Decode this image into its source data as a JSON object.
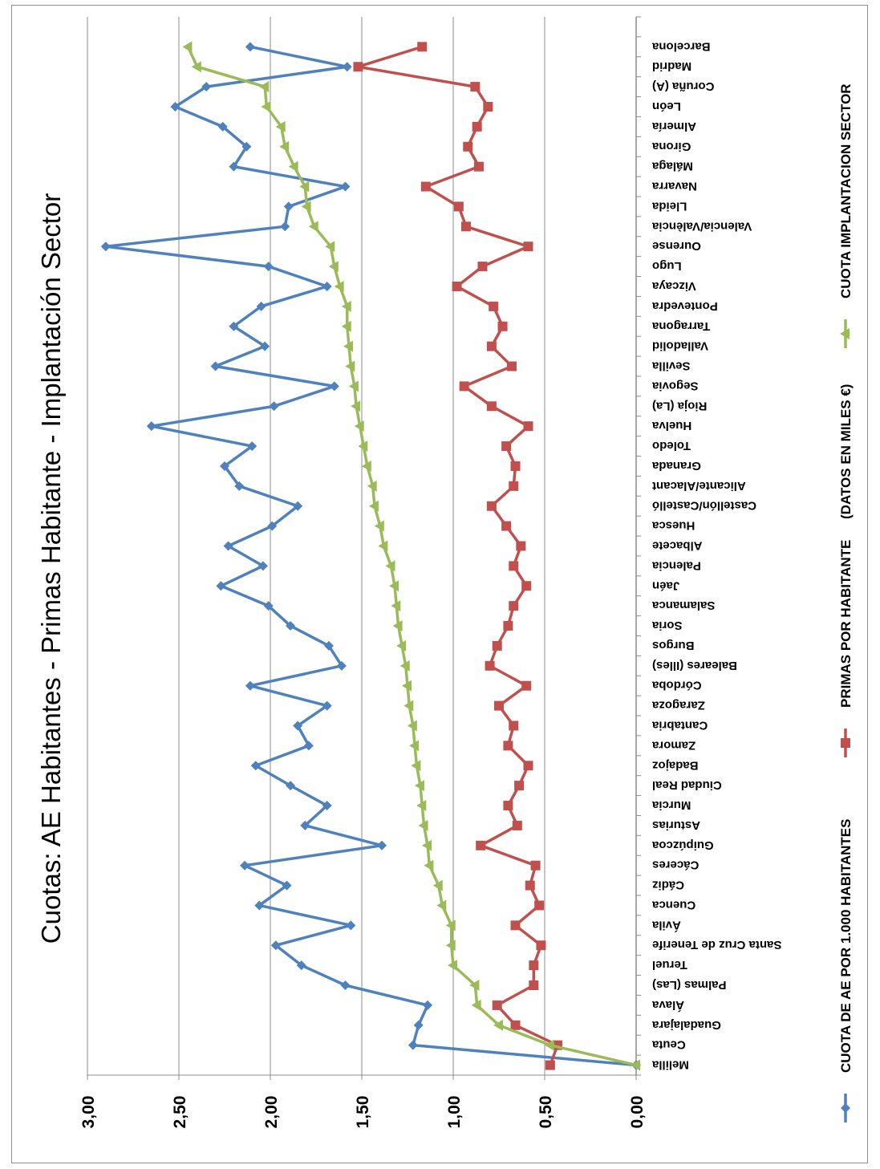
{
  "chart_data": {
    "type": "line",
    "title": "Cuotas: AE Habitantes - Primas Habitante - Implantación Sector",
    "ylim": [
      0,
      3
    ],
    "ytick_labels": [
      "0,00",
      "0,50",
      "1,00",
      "1,50",
      "2,00",
      "2,50",
      "3,00"
    ],
    "ytick_values": [
      0,
      0.5,
      1,
      1.5,
      2,
      2.5,
      3
    ],
    "grid": "horizontal",
    "legend_position": "bottom",
    "legend_note": "(DATOS EN MILES €)",
    "categories": [
      "Melilla",
      "Ceuta",
      "Guadalajara",
      "Álava",
      "Palmas (Las)",
      "Teruel",
      "Santa Cruz de Tenerife",
      "Ávila",
      "Cuenca",
      "Cádiz",
      "Cáceres",
      "Guipúzcoa",
      "Asturias",
      "Murcia",
      "Ciudad Real",
      "Badajoz",
      "Zamora",
      "Cantabria",
      "Zaragoza",
      "Córdoba",
      "Baleares (Illes)",
      "Burgos",
      "Soria",
      "Salamanca",
      "Jaén",
      "Palencia",
      "Albacete",
      "Huesca",
      "Castellón/Castelló",
      "Alicante/Alacant",
      "Granada",
      "Toledo",
      "Huelva",
      "Rioja (La)",
      "Segovia",
      "Sevilla",
      "Valladolid",
      "Tarragona",
      "Pontevedra",
      "Vizcaya",
      "Lugo",
      "Ourense",
      "Valencia/València",
      "Lleida",
      "Navarra",
      "Málaga",
      "Girona",
      "Almería",
      "León",
      "Coruña (A)",
      "Madrid",
      "Barcelona"
    ],
    "series": [
      {
        "name": "CUOTA DE AE POR 1.000 HABITANTES",
        "color": "#4f81bd",
        "marker": "diamond",
        "values": [
          0.0,
          1.22,
          1.19,
          1.14,
          1.59,
          1.83,
          1.97,
          1.56,
          2.06,
          1.91,
          2.14,
          1.39,
          1.81,
          1.69,
          1.89,
          2.08,
          1.79,
          1.85,
          1.69,
          2.11,
          1.61,
          1.68,
          1.89,
          2.01,
          2.27,
          2.04,
          2.23,
          1.99,
          1.85,
          2.17,
          2.25,
          2.1,
          2.65,
          1.98,
          1.65,
          2.3,
          2.03,
          2.2,
          2.05,
          1.69,
          2.01,
          2.9,
          1.92,
          1.9,
          1.59,
          2.2,
          2.13,
          2.26,
          2.52,
          2.35,
          1.58,
          2.11
        ]
      },
      {
        "name": "PRIMAS POR HABITANTE",
        "color": "#c0504d",
        "marker": "square",
        "values": [
          0.47,
          0.43,
          0.66,
          0.76,
          0.56,
          0.56,
          0.52,
          0.66,
          0.53,
          0.58,
          0.55,
          0.85,
          0.65,
          0.7,
          0.64,
          0.59,
          0.7,
          0.67,
          0.75,
          0.6,
          0.8,
          0.76,
          0.7,
          0.67,
          0.6,
          0.67,
          0.63,
          0.71,
          0.79,
          0.67,
          0.66,
          0.71,
          0.59,
          0.79,
          0.94,
          0.68,
          0.79,
          0.73,
          0.78,
          0.98,
          0.84,
          0.59,
          0.93,
          0.97,
          1.15,
          0.86,
          0.92,
          0.87,
          0.81,
          0.88,
          1.52,
          1.17
        ]
      },
      {
        "name": "CUOTA IMPLANTACION SECTOR",
        "color": "#9bbb59",
        "marker": "triangle",
        "values": [
          0.0,
          0.47,
          0.75,
          0.87,
          0.88,
          1.0,
          1.01,
          1.01,
          1.06,
          1.08,
          1.13,
          1.14,
          1.16,
          1.17,
          1.18,
          1.2,
          1.21,
          1.22,
          1.24,
          1.25,
          1.26,
          1.28,
          1.3,
          1.31,
          1.32,
          1.34,
          1.38,
          1.4,
          1.43,
          1.44,
          1.47,
          1.49,
          1.51,
          1.53,
          1.54,
          1.56,
          1.57,
          1.58,
          1.58,
          1.62,
          1.65,
          1.67,
          1.76,
          1.8,
          1.81,
          1.87,
          1.92,
          1.94,
          2.02,
          2.03,
          2.4,
          2.45
        ]
      }
    ]
  }
}
